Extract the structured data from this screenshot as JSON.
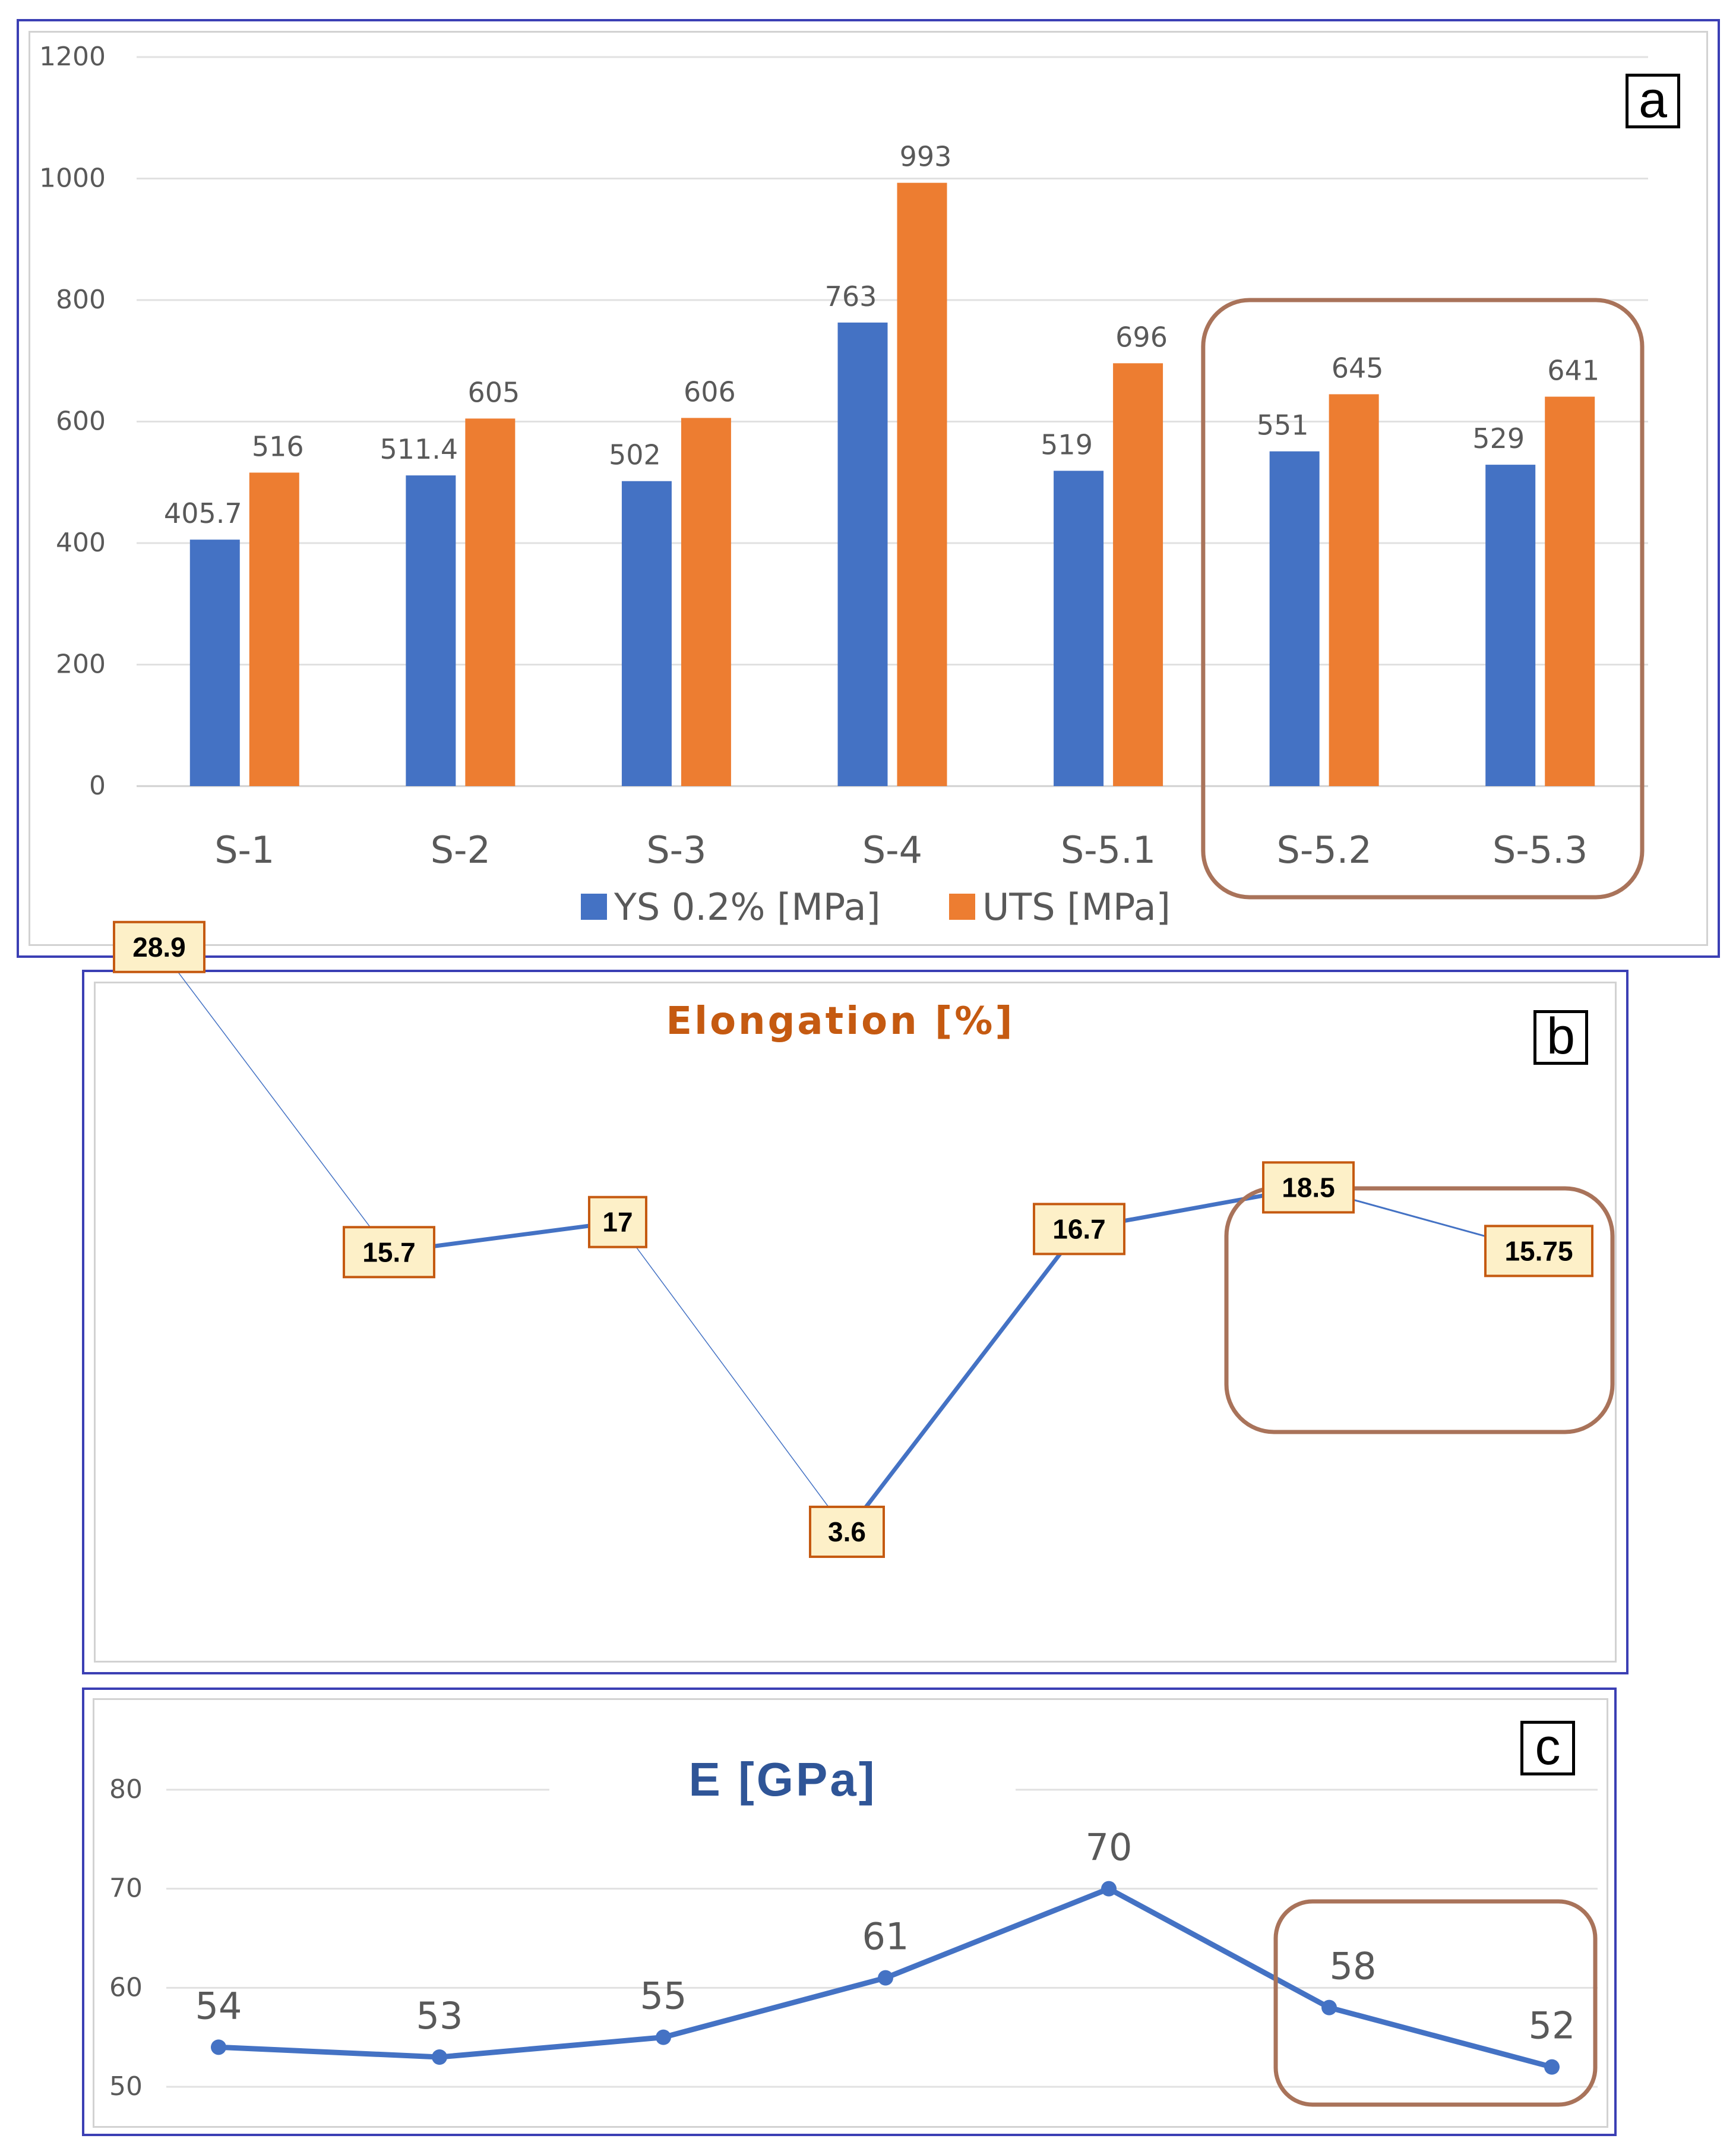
{
  "colors": {
    "ys": "#4472c4",
    "uts": "#ed7d31",
    "line": "#4472c4",
    "highlight": "#a9735a",
    "frame": "#3b3fb4",
    "title_b": "#c55a11",
    "title_c": "#2f5597",
    "label_fill": "#fdf0c8",
    "label_border": "#c55a11"
  },
  "panels": {
    "a": {
      "letter": "a"
    },
    "b": {
      "letter": "b"
    },
    "c": {
      "letter": "c"
    }
  },
  "chart_data": [
    {
      "type": "bar",
      "panel": "a",
      "categories": [
        "S-1",
        "S-2",
        "S-3",
        "S-4",
        "S-5.1",
        "S-5.2",
        "S-5.3"
      ],
      "series": [
        {
          "name": "YS 0.2% [MPa]",
          "values": [
            405.7,
            511.4,
            502,
            763,
            519,
            551,
            529
          ],
          "labels": [
            "405.7",
            "511.4",
            "502",
            "763",
            "519",
            "551",
            "529"
          ]
        },
        {
          "name": "UTS [MPa]",
          "values": [
            516,
            605,
            606,
            993,
            696,
            645,
            641
          ],
          "labels": [
            "516",
            "605",
            "606",
            "993",
            "696",
            "645",
            "641"
          ]
        }
      ],
      "ylim": [
        0,
        1200
      ],
      "yticks": [
        "0",
        "200",
        "400",
        "600",
        "800",
        "1000",
        "1200"
      ],
      "grid": true,
      "legend": "bottom",
      "highlight_categories": [
        "S-5.2",
        "S-5.3"
      ]
    },
    {
      "type": "line",
      "panel": "b",
      "title": "Elongation [%]",
      "values": [
        28.9,
        15.7,
        17,
        3.6,
        16.7,
        18.5,
        15.75
      ],
      "labels": [
        "28.9",
        "15.7",
        "17",
        "3.6",
        "16.7",
        "18.5",
        "15.75"
      ],
      "axes_visible": false,
      "highlight_points": [
        "18.5",
        "15.75"
      ]
    },
    {
      "type": "line",
      "panel": "c",
      "title": "E [GPa]",
      "values": [
        54,
        53,
        55,
        61,
        70,
        58,
        52
      ],
      "labels": [
        "54",
        "53",
        "55",
        "61",
        "70",
        "58",
        "52"
      ],
      "ylim": [
        50,
        80
      ],
      "yticks": [
        "50",
        "60",
        "70",
        "80"
      ],
      "grid": true,
      "highlight_points": [
        "58",
        "52"
      ]
    }
  ]
}
